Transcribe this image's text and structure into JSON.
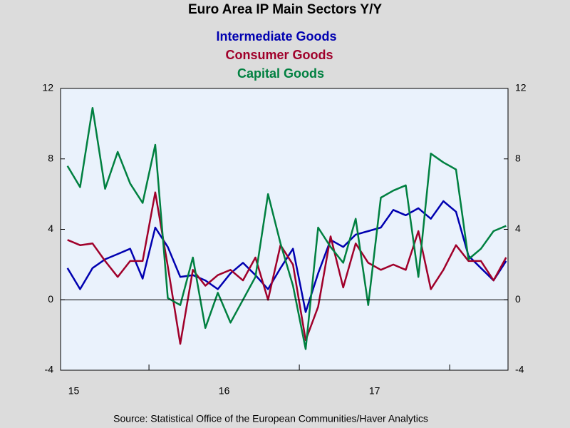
{
  "chart_data": {
    "type": "line",
    "title": "Euro Area IP Main Sectors Y/Y",
    "source": "Source:  Statistical Office of the European Communities/Haver Analytics",
    "x": [
      2015.458,
      2015.542,
      2015.625,
      2015.708,
      2015.792,
      2015.875,
      2015.958,
      2016.042,
      2016.125,
      2016.208,
      2016.292,
      2016.375,
      2016.458,
      2016.542,
      2016.625,
      2016.708,
      2016.792,
      2016.875,
      2016.958,
      2017.042,
      2017.125,
      2017.208,
      2017.292,
      2017.375,
      2017.458,
      2017.542,
      2017.625,
      2017.708,
      2017.792,
      2017.875,
      2017.958,
      2018.042,
      2018.125,
      2018.208,
      2018.292,
      2018.375
    ],
    "series": [
      {
        "name": "Intermediate Goods",
        "color": "#0000b0",
        "values": [
          1.8,
          0.6,
          1.8,
          2.3,
          2.6,
          2.9,
          1.2,
          4.1,
          3.0,
          1.3,
          1.4,
          1.1,
          0.6,
          1.5,
          2.1,
          1.4,
          0.6,
          1.8,
          2.9,
          -0.7,
          1.5,
          3.4,
          3.0,
          3.7,
          3.9,
          4.1,
          5.1,
          4.8,
          5.2,
          4.6,
          5.6,
          5.0,
          2.5,
          1.8,
          1.1,
          2.2
        ]
      },
      {
        "name": "Consumer Goods",
        "color": "#a0002a",
        "values": [
          3.4,
          3.1,
          3.2,
          2.2,
          1.3,
          2.2,
          2.2,
          6.1,
          1.9,
          -2.5,
          1.7,
          0.8,
          1.4,
          1.7,
          1.1,
          2.4,
          0.0,
          3.1,
          2.0,
          -2.3,
          -0.4,
          3.6,
          0.7,
          3.2,
          2.1,
          1.7,
          2.0,
          1.7,
          3.9,
          0.6,
          1.7,
          3.1,
          2.2,
          2.2,
          1.1,
          2.4
        ]
      },
      {
        "name": "Capital Goods",
        "color": "#008040",
        "values": [
          7.6,
          6.4,
          10.9,
          6.3,
          8.4,
          6.6,
          5.5,
          8.8,
          0.1,
          -0.3,
          2.4,
          -1.6,
          0.4,
          -1.3,
          0.0,
          1.3,
          6.0,
          3.2,
          0.8,
          -2.8,
          4.1,
          3.0,
          2.1,
          4.6,
          -0.3,
          5.8,
          6.2,
          6.5,
          1.3,
          8.3,
          7.8,
          7.4,
          2.3,
          2.9,
          3.9,
          4.2
        ]
      }
    ],
    "xlim": [
      2015.412,
      2018.388
    ],
    "xticks": [
      2016,
      2017,
      2018
    ],
    "xlabels": [
      {
        "value": 2015.5,
        "label": "15"
      },
      {
        "value": 2016.5,
        "label": "16"
      },
      {
        "value": 2017.5,
        "label": "17"
      }
    ],
    "ylim": [
      -4,
      12
    ],
    "yticks": [
      -4,
      0,
      4,
      8,
      12
    ],
    "zero_line": true
  }
}
